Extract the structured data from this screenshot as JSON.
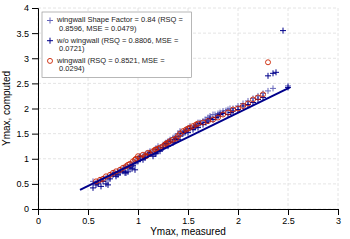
{
  "chart_data": {
    "type": "scatter",
    "xlabel": "Ymax, measured",
    "ylabel": "Ymax, computed",
    "xlim": [
      0,
      3
    ],
    "ylim": [
      0,
      4
    ],
    "xticks": [
      0,
      0.5,
      1,
      1.5,
      2,
      2.5,
      3
    ],
    "yticks": [
      0,
      0.5,
      1,
      1.5,
      2,
      2.5,
      3,
      3.5,
      4
    ],
    "grid": true,
    "legend": "upper left",
    "series": [
      {
        "name": "wingwall Shape Factor = 0.84 (RSQ =\n  0.8596, MSE = 0.0479)",
        "type": "scatter",
        "marker": "plus",
        "color": "#6666BB",
        "x": [
          0.55,
          0.58,
          0.6,
          0.62,
          0.65,
          0.68,
          0.7,
          0.72,
          0.75,
          0.77,
          0.78,
          0.8,
          0.82,
          0.85,
          0.87,
          0.88,
          0.9,
          0.92,
          0.93,
          0.95,
          0.97,
          0.98,
          1.0,
          1.02,
          1.03,
          1.05,
          1.07,
          1.08,
          1.1,
          1.12,
          1.14,
          1.15,
          1.17,
          1.18,
          1.2,
          1.22,
          1.25,
          1.27,
          1.28,
          1.3,
          1.32,
          1.35,
          1.37,
          1.38,
          1.4,
          1.42,
          1.43,
          1.45,
          1.47,
          1.48,
          1.5,
          1.52,
          1.55,
          1.57,
          1.58,
          1.6,
          1.62,
          1.65,
          1.67,
          1.68,
          1.7,
          1.72,
          1.75,
          1.77,
          1.8,
          1.82,
          1.85,
          1.88,
          1.9,
          1.92,
          1.95,
          2.0,
          2.05,
          2.1,
          2.15,
          2.2,
          2.25,
          2.3,
          2.35,
          2.5
        ],
        "values": [
          0.55,
          0.52,
          0.52,
          0.58,
          0.6,
          0.62,
          0.58,
          0.65,
          0.7,
          0.72,
          0.68,
          0.75,
          0.78,
          0.8,
          0.82,
          0.85,
          0.82,
          0.88,
          0.85,
          0.92,
          0.9,
          0.95,
          1.0,
          0.98,
          1.02,
          1.05,
          1.08,
          1.1,
          1.08,
          1.15,
          1.12,
          1.12,
          1.18,
          1.2,
          1.25,
          1.22,
          1.28,
          1.3,
          1.32,
          1.35,
          1.38,
          1.42,
          1.44,
          1.45,
          1.5,
          1.55,
          1.52,
          1.52,
          1.55,
          1.58,
          1.6,
          1.65,
          1.62,
          1.65,
          1.68,
          1.72,
          1.72,
          1.75,
          1.78,
          1.78,
          1.82,
          1.85,
          1.88,
          1.88,
          1.9,
          1.92,
          1.95,
          1.96,
          1.98,
          2.0,
          2.0,
          2.05,
          2.1,
          2.15,
          2.2,
          2.25,
          2.3,
          2.35,
          2.4,
          2.45
        ]
      },
      {
        "name": "w/o wingwall (RSQ = 0.8806, MSE =\n  0.0721)",
        "type": "scatter",
        "marker": "plus",
        "color": "#00008B",
        "x": [
          0.55,
          0.58,
          0.6,
          0.63,
          0.65,
          0.68,
          0.7,
          0.72,
          0.75,
          0.78,
          0.8,
          0.82,
          0.85,
          0.87,
          0.88,
          0.9,
          0.92,
          0.94,
          0.95,
          0.97,
          1.0,
          1.02,
          1.05,
          1.07,
          1.1,
          1.12,
          1.15,
          1.17,
          1.18,
          1.2,
          1.22,
          1.25,
          1.28,
          1.3,
          1.32,
          1.35,
          1.37,
          1.38,
          1.4,
          1.42,
          1.45,
          1.47,
          1.48,
          1.5,
          1.52,
          1.55,
          1.57,
          1.58,
          1.6,
          1.62,
          1.65,
          1.68,
          1.7,
          1.72,
          1.75,
          1.78,
          1.8,
          1.82,
          1.85,
          1.9,
          1.93,
          1.95,
          2.0,
          2.05,
          2.1,
          2.15,
          2.2,
          2.25,
          2.3,
          2.35,
          2.38,
          2.45,
          2.5
        ],
        "values": [
          0.42,
          0.48,
          0.5,
          0.45,
          0.55,
          0.5,
          0.48,
          0.6,
          0.68,
          0.65,
          0.68,
          0.72,
          0.75,
          0.72,
          0.72,
          0.74,
          0.82,
          0.8,
          0.86,
          0.78,
          0.95,
          1.05,
          0.98,
          1.02,
          1.08,
          1.12,
          1.05,
          1.1,
          1.1,
          1.18,
          1.15,
          1.22,
          1.3,
          1.25,
          1.35,
          1.32,
          1.38,
          1.4,
          1.38,
          1.45,
          1.5,
          1.52,
          1.55,
          1.52,
          1.6,
          1.58,
          1.62,
          1.65,
          1.62,
          1.7,
          1.68,
          1.72,
          1.75,
          1.8,
          1.78,
          1.82,
          1.85,
          1.88,
          1.9,
          1.88,
          1.92,
          1.95,
          1.98,
          2.05,
          2.08,
          2.12,
          2.18,
          2.22,
          2.65,
          2.7,
          2.72,
          3.55,
          2.42
        ]
      },
      {
        "name": "wingwall (RSQ = 0.8521, MSE =\n  0.0294)",
        "type": "scatter",
        "marker": "circle",
        "color": "#CC2200",
        "x": [
          0.58,
          0.62,
          0.65,
          0.68,
          0.72,
          0.75,
          0.78,
          0.82,
          0.85,
          0.88,
          0.9,
          0.92,
          0.95,
          0.97,
          0.98,
          1.0,
          1.02,
          1.05,
          1.07,
          1.08,
          1.1,
          1.12,
          1.15,
          1.17,
          1.18,
          1.2,
          1.22,
          1.25,
          1.27,
          1.28,
          1.3,
          1.32,
          1.35,
          1.38,
          1.4,
          1.42,
          1.45,
          1.48,
          1.5,
          1.52,
          1.55,
          1.58,
          1.6,
          1.65,
          1.7,
          1.75,
          1.8,
          1.85,
          1.9,
          1.95,
          2.0,
          2.05,
          2.1,
          2.15,
          2.2,
          2.25,
          2.3
        ],
        "values": [
          0.55,
          0.58,
          0.6,
          0.65,
          0.68,
          0.72,
          0.75,
          0.78,
          0.82,
          0.85,
          0.88,
          0.9,
          0.95,
          0.98,
          1.0,
          1.05,
          1.02,
          1.08,
          1.05,
          1.05,
          1.12,
          1.1,
          1.15,
          1.18,
          1.18,
          1.2,
          1.22,
          1.25,
          1.28,
          1.3,
          1.32,
          1.35,
          1.38,
          1.4,
          1.45,
          1.5,
          1.55,
          1.58,
          1.6,
          1.62,
          1.65,
          1.68,
          1.7,
          1.72,
          1.75,
          1.78,
          1.82,
          1.88,
          1.92,
          1.98,
          2.0,
          2.05,
          2.1,
          2.18,
          2.22,
          2.28,
          2.92
        ]
      },
      {
        "type": "line",
        "line_style": "solid",
        "color": "#00008B",
        "x": [
          0.42,
          2.52
        ],
        "values": [
          0.38,
          2.42
        ]
      }
    ]
  }
}
